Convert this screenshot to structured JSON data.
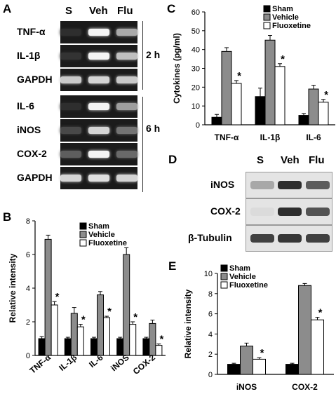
{
  "panels": {
    "A": "A",
    "B": "B",
    "C": "C",
    "D": "D",
    "E": "E"
  },
  "gel": {
    "lanes": [
      "S",
      "Veh",
      "Flu"
    ],
    "rows": [
      {
        "label": "TNF-α",
        "bands": [
          0.03,
          0.95,
          0.6
        ]
      },
      {
        "label": "IL-1β",
        "bands": [
          0.05,
          0.95,
          0.7
        ]
      },
      {
        "label": "GAPDH",
        "bands": [
          0.75,
          0.8,
          0.75
        ]
      },
      {
        "label": "IL-6",
        "bands": [
          0.03,
          0.95,
          0.55
        ]
      },
      {
        "label": "iNOS",
        "bands": [
          0.15,
          0.8,
          0.35
        ]
      },
      {
        "label": "COX-2",
        "bands": [
          0.25,
          0.95,
          0.3
        ]
      },
      {
        "label": "GAPDH",
        "bands": [
          0.8,
          0.85,
          0.8
        ]
      }
    ],
    "time_labels": [
      "2 h",
      "6 h"
    ]
  },
  "western": {
    "lanes": [
      "S",
      "Veh",
      "Flu"
    ],
    "rows": [
      {
        "label": "iNOS",
        "bands": [
          0.3,
          0.95,
          0.7
        ]
      },
      {
        "label": "COX-2",
        "bands": [
          0.03,
          0.95,
          0.75
        ]
      },
      {
        "label": "β-Tubulin",
        "bands": [
          0.85,
          0.9,
          0.85
        ]
      }
    ]
  },
  "chart_data": [
    {
      "panel": "B",
      "type": "bar",
      "ylabel": "Relative intensity",
      "categories": [
        "TNF-α",
        "IL-1β",
        "IL-6",
        "iNOS",
        "COX-2"
      ],
      "ylim": [
        0,
        8
      ],
      "yticks": [
        0,
        2,
        4,
        6,
        8
      ],
      "legend": [
        "Sham",
        "Vehicle",
        "Fluoxetine"
      ],
      "series": [
        {
          "name": "Sham",
          "values": [
            1,
            1,
            1,
            1,
            1
          ],
          "errors": [
            0.12,
            0.08,
            0.08,
            0.08,
            0.08
          ]
        },
        {
          "name": "Vehicle",
          "values": [
            6.9,
            2.5,
            3.6,
            6.0,
            1.9
          ],
          "errors": [
            0.25,
            0.35,
            0.2,
            0.4,
            0.2
          ]
        },
        {
          "name": "Fluoxetine",
          "values": [
            3.0,
            1.7,
            2.25,
            1.85,
            0.6
          ],
          "errors": [
            0.2,
            0.15,
            0.08,
            0.15,
            0.08
          ]
        }
      ],
      "significance": [
        "*",
        "*",
        "*",
        "*",
        "*"
      ]
    },
    {
      "panel": "C",
      "type": "bar",
      "ylabel": "Cytokines (pg/ml)",
      "categories": [
        "TNF-α",
        "IL-1β",
        "IL-6"
      ],
      "ylim": [
        0,
        60
      ],
      "yticks": [
        0,
        10,
        20,
        30,
        40,
        50,
        60
      ],
      "legend": [
        "Sham",
        "Vehicle",
        "Fluoxetine"
      ],
      "series": [
        {
          "name": "Sham",
          "values": [
            4,
            15,
            5
          ],
          "errors": [
            1.5,
            4.5,
            1
          ]
        },
        {
          "name": "Vehicle",
          "values": [
            39,
            45,
            19
          ],
          "errors": [
            2,
            2.5,
            2
          ]
        },
        {
          "name": "Fluoxetine",
          "values": [
            22,
            31,
            12
          ],
          "errors": [
            1.5,
            1.5,
            1.5
          ]
        }
      ],
      "significance": [
        "*",
        "*",
        "*"
      ]
    },
    {
      "panel": "E",
      "type": "bar",
      "ylabel": "Relative intensity",
      "categories": [
        "iNOS",
        "COX-2"
      ],
      "ylim": [
        0,
        10
      ],
      "yticks": [
        0,
        2,
        4,
        6,
        8,
        10
      ],
      "legend": [
        "Sham",
        "Vehicle",
        "Fluoxetine"
      ],
      "series": [
        {
          "name": "Sham",
          "values": [
            1,
            1
          ],
          "errors": [
            0.1,
            0.1
          ]
        },
        {
          "name": "Vehicle",
          "values": [
            2.8,
            8.8
          ],
          "errors": [
            0.3,
            0.2
          ]
        },
        {
          "name": "Fluoxetine",
          "values": [
            1.5,
            5.4
          ],
          "errors": [
            0.15,
            0.25
          ]
        }
      ],
      "significance": [
        "*",
        "*"
      ]
    }
  ],
  "colors": {
    "sham": "#000000",
    "vehicle": "#8c8c8c",
    "fluoxetine": "#ffffff"
  }
}
